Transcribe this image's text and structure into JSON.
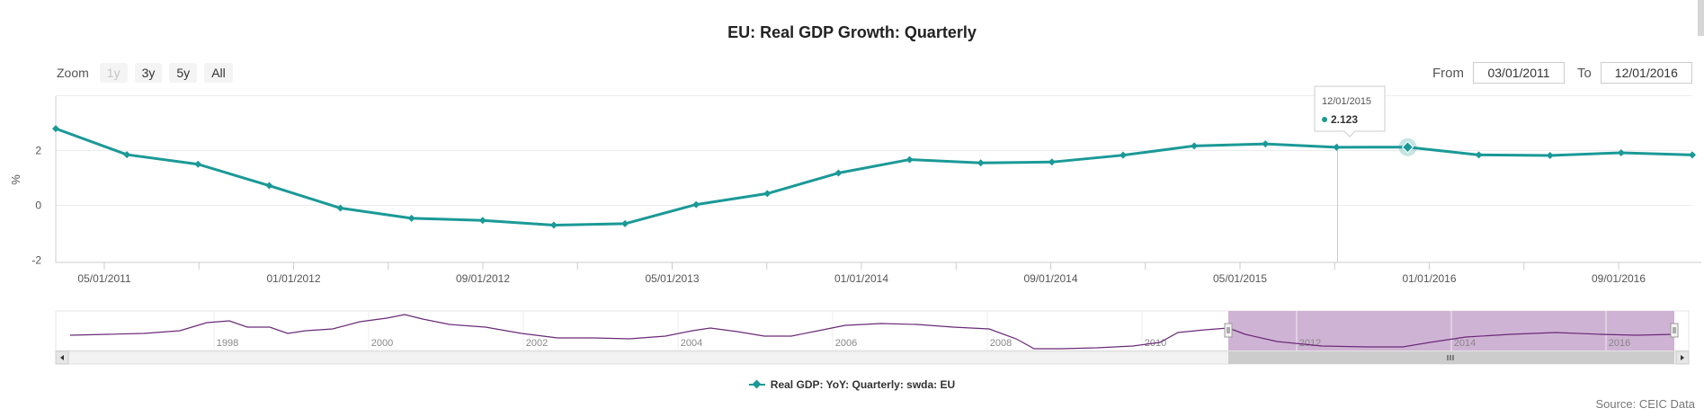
{
  "title": "EU: Real GDP Growth: Quarterly",
  "zoom": {
    "label": "Zoom",
    "buttons": [
      "1y",
      "3y",
      "5y",
      "All"
    ]
  },
  "range": {
    "from_label": "From",
    "from_value": "03/01/2011",
    "to_label": "To",
    "to_value": "12/01/2016"
  },
  "tooltip": {
    "date": "12/01/2015",
    "value": "2.123"
  },
  "legend": {
    "label": "Real GDP: YoY: Quarterly: swda: EU"
  },
  "source": "Source: CEIC Data",
  "colors": {
    "series": "#1a9997",
    "navigator_fill": "#cfb3d4",
    "navigator_line": "#6b2a78"
  },
  "chart_data": {
    "type": "line",
    "ylabel": "%",
    "y_ticks": [
      "2",
      "0",
      "-2"
    ],
    "ylim": [
      -2,
      4
    ],
    "x_tick_labels": [
      "05/01/2011",
      "01/01/2012",
      "09/01/2012",
      "05/01/2013",
      "01/01/2014",
      "09/01/2014",
      "05/01/2015",
      "01/01/2016",
      "09/01/2016"
    ],
    "series": [
      {
        "name": "Real GDP: YoY: Quarterly: swda: EU",
        "x": [
          "03/01/2011",
          "06/01/2011",
          "09/01/2011",
          "12/01/2011",
          "03/01/2012",
          "06/01/2012",
          "09/01/2012",
          "12/01/2012",
          "03/01/2013",
          "06/01/2013",
          "09/01/2013",
          "12/01/2013",
          "03/01/2014",
          "06/01/2014",
          "09/01/2014",
          "12/01/2014",
          "03/01/2015",
          "06/01/2015",
          "09/01/2015",
          "12/01/2015",
          "03/01/2016",
          "06/01/2016",
          "09/01/2016",
          "12/01/2016"
        ],
        "values": [
          2.8,
          1.85,
          1.5,
          0.72,
          -0.1,
          -0.47,
          -0.55,
          -0.72,
          -0.67,
          0.03,
          0.43,
          1.18,
          1.67,
          1.55,
          1.58,
          1.83,
          2.17,
          2.24,
          2.12,
          2.123,
          1.84,
          1.82,
          1.92,
          1.84
        ]
      }
    ],
    "tooltip_index": 19
  },
  "navigator": {
    "year_labels": [
      "1998",
      "2000",
      "2002",
      "2004",
      "2006",
      "2008",
      "2010",
      "2012",
      "2014",
      "2016"
    ]
  }
}
